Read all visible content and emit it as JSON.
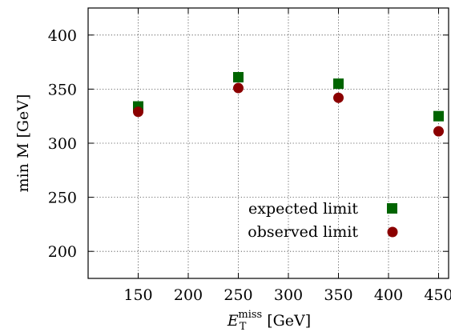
{
  "chart_data": {
    "type": "scatter",
    "xlabel": {
      "main": "E",
      "sub": "T",
      "sup": "miss",
      "unit": "[GeV]"
    },
    "ylabel": "min M [GeV]",
    "xlim": [
      100,
      460
    ],
    "ylim": [
      175,
      425
    ],
    "xticks": [
      150,
      200,
      250,
      300,
      350,
      400,
      450
    ],
    "yticks": [
      200,
      250,
      300,
      350,
      400
    ],
    "grid": true,
    "legend": "bottom-right",
    "series": [
      {
        "name": "expected limit",
        "marker": "square",
        "color": "#006400",
        "x": [
          150,
          250,
          350,
          450
        ],
        "y": [
          334,
          361,
          355,
          325
        ]
      },
      {
        "name": "observed limit",
        "marker": "circle",
        "color": "#8b0000",
        "x": [
          150,
          250,
          350,
          450
        ],
        "y": [
          329,
          351,
          342,
          311
        ]
      }
    ]
  }
}
